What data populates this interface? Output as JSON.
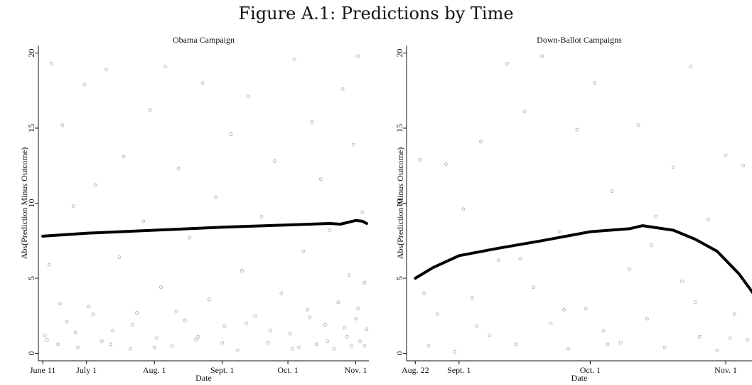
{
  "figure_title": "Figure A.1: Predictions by Time",
  "chart_data": [
    {
      "type": "scatter",
      "title": "Obama Campaign",
      "xlabel": "Date",
      "ylabel": "Abs(Prediction Minus Outcome)",
      "xlim": [
        "2012-06-09",
        "2012-11-07"
      ],
      "ylim": [
        -0.5,
        20.5
      ],
      "yticks": [
        0,
        5,
        10,
        15,
        20
      ],
      "xticks": [
        {
          "date": "2012-06-11",
          "label": "June 11"
        },
        {
          "date": "2012-07-01",
          "label": "July 1"
        },
        {
          "date": "2012-08-01",
          "label": "Aug. 1"
        },
        {
          "date": "2012-09-01",
          "label": "Sept. 1"
        },
        {
          "date": "2012-10-01",
          "label": "Oct. 1"
        },
        {
          "date": "2012-11-01",
          "label": "Nov. 1"
        }
      ],
      "grid": false,
      "colors": {
        "points": "#a9a9a9",
        "fit_line": "#000000"
      },
      "series": [
        {
          "kind": "fit_line",
          "x": [
            "2012-06-11",
            "2012-07-01",
            "2012-08-01",
            "2012-09-01",
            "2012-10-01",
            "2012-10-20",
            "2012-10-25",
            "2012-11-01",
            "2012-11-04",
            "2012-11-06"
          ],
          "y": [
            7.8,
            8.0,
            8.2,
            8.4,
            8.55,
            8.65,
            8.6,
            8.85,
            8.8,
            8.65
          ]
        },
        {
          "kind": "points",
          "x": [
            "2012-06-12",
            "2012-06-14",
            "2012-06-15",
            "2012-06-18",
            "2012-06-20",
            "2012-06-22",
            "2012-06-25",
            "2012-06-27",
            "2012-06-30",
            "2012-07-02",
            "2012-07-05",
            "2012-07-08",
            "2012-07-10",
            "2012-07-13",
            "2012-07-16",
            "2012-07-18",
            "2012-07-21",
            "2012-07-24",
            "2012-07-27",
            "2012-07-30",
            "2012-08-02",
            "2012-08-04",
            "2012-08-06",
            "2012-08-09",
            "2012-08-12",
            "2012-08-15",
            "2012-08-17",
            "2012-08-20",
            "2012-08-23",
            "2012-08-26",
            "2012-08-29",
            "2012-09-02",
            "2012-09-05",
            "2012-09-08",
            "2012-09-10",
            "2012-09-13",
            "2012-09-16",
            "2012-09-19",
            "2012-09-22",
            "2012-09-25",
            "2012-09-28",
            "2012-10-02",
            "2012-10-04",
            "2012-10-06",
            "2012-10-08",
            "2012-10-10",
            "2012-10-12",
            "2012-10-14",
            "2012-10-16",
            "2012-10-18",
            "2012-10-20",
            "2012-10-22",
            "2012-10-24",
            "2012-10-26",
            "2012-10-28",
            "2012-10-29",
            "2012-10-30",
            "2012-10-31",
            "2012-11-01",
            "2012-11-02",
            "2012-11-03",
            "2012-11-04",
            "2012-11-05",
            "2012-11-06",
            "2012-06-13",
            "2012-06-19",
            "2012-06-26",
            "2012-07-04",
            "2012-07-12",
            "2012-07-22",
            "2012-08-01",
            "2012-08-11",
            "2012-08-21",
            "2012-09-01",
            "2012-09-12",
            "2012-09-23",
            "2012-10-03",
            "2012-10-11",
            "2012-10-19",
            "2012-10-27",
            "2012-11-02",
            "2012-11-05"
          ],
          "y": [
            1.2,
            5.9,
            19.3,
            0.6,
            15.2,
            2.1,
            9.8,
            0.4,
            17.9,
            3.1,
            11.2,
            0.8,
            18.9,
            1.5,
            6.4,
            13.1,
            0.3,
            2.7,
            8.8,
            16.2,
            1.0,
            4.4,
            19.1,
            0.5,
            12.3,
            2.2,
            7.7,
            0.9,
            18.0,
            3.6,
            10.4,
            1.8,
            14.6,
            0.2,
            5.5,
            17.1,
            2.5,
            9.1,
            0.7,
            12.8,
            4.0,
            1.3,
            19.6,
            0.4,
            6.8,
            2.9,
            15.4,
            0.6,
            11.6,
            1.9,
            8.2,
            0.3,
            3.4,
            17.6,
            1.1,
            5.2,
            0.5,
            13.9,
            2.3,
            19.8,
            0.8,
            9.4,
            4.7,
            1.6,
            0.9,
            3.3,
            1.4,
            2.6,
            0.6,
            1.9,
            0.4,
            2.8,
            1.1,
            0.7,
            2.0,
            1.5,
            0.3,
            2.4,
            0.8,
            1.7,
            3.0,
            0.5
          ]
        }
      ]
    },
    {
      "type": "scatter",
      "title": "Down-Ballot Campaigns",
      "xlabel": "Date",
      "ylabel": "Abs(Prediction Minus Outcome)",
      "xlim": [
        "2012-08-20",
        "2012-11-07"
      ],
      "ylim": [
        -0.5,
        20.5
      ],
      "yticks": [
        0,
        5,
        10,
        15,
        20
      ],
      "xticks": [
        {
          "date": "2012-08-22",
          "label": "Aug. 22"
        },
        {
          "date": "2012-09-01",
          "label": "Sept. 1"
        },
        {
          "date": "2012-10-01",
          "label": "Oct. 1"
        },
        {
          "date": "2012-11-01",
          "label": "Nov. 1"
        }
      ],
      "grid": false,
      "colors": {
        "points": "#a9a9a9",
        "fit_line": "#000000"
      },
      "series": [
        {
          "kind": "fit_line",
          "x": [
            "2012-08-22",
            "2012-08-26",
            "2012-09-01",
            "2012-09-10",
            "2012-09-20",
            "2012-10-01",
            "2012-10-10",
            "2012-10-13",
            "2012-10-20",
            "2012-10-25",
            "2012-10-30",
            "2012-11-04",
            "2012-11-08"
          ],
          "y": [
            5.0,
            5.7,
            6.5,
            7.0,
            7.5,
            8.1,
            8.3,
            8.5,
            8.2,
            7.6,
            6.8,
            5.3,
            3.7
          ]
        },
        {
          "kind": "points",
          "x": [
            "2012-08-23",
            "2012-08-25",
            "2012-08-27",
            "2012-08-29",
            "2012-08-31",
            "2012-09-02",
            "2012-09-04",
            "2012-09-06",
            "2012-09-08",
            "2012-09-10",
            "2012-09-12",
            "2012-09-14",
            "2012-09-16",
            "2012-09-18",
            "2012-09-20",
            "2012-09-22",
            "2012-09-24",
            "2012-09-26",
            "2012-09-28",
            "2012-09-30",
            "2012-10-02",
            "2012-10-04",
            "2012-10-06",
            "2012-10-08",
            "2012-10-10",
            "2012-10-12",
            "2012-10-14",
            "2012-10-16",
            "2012-10-18",
            "2012-10-20",
            "2012-10-22",
            "2012-10-24",
            "2012-10-26",
            "2012-10-28",
            "2012-10-30",
            "2012-11-01",
            "2012-11-03",
            "2012-11-05",
            "2012-11-06",
            "2012-08-24",
            "2012-09-05",
            "2012-09-15",
            "2012-09-25",
            "2012-10-05",
            "2012-10-15",
            "2012-10-25",
            "2012-11-02"
          ],
          "y": [
            12.9,
            0.5,
            2.6,
            12.6,
            0.1,
            9.6,
            3.7,
            14.1,
            1.2,
            6.2,
            19.3,
            0.6,
            16.1,
            4.4,
            19.8,
            2.0,
            8.1,
            0.3,
            14.9,
            3.0,
            18.0,
            1.5,
            10.8,
            0.7,
            5.6,
            15.2,
            2.3,
            9.1,
            0.4,
            12.4,
            4.8,
            19.1,
            1.1,
            8.9,
            0.2,
            13.2,
            2.6,
            12.5,
            0.9,
            4.0,
            1.8,
            6.3,
            2.9,
            0.6,
            7.2,
            3.4,
            1.0
          ]
        }
      ]
    }
  ]
}
